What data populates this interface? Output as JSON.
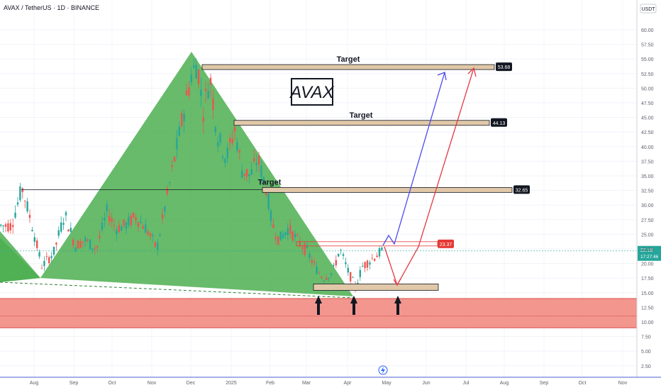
{
  "header": {
    "symbol_title": "AVAX / TetherUS · 1D · BINANCE",
    "currency": "USDT"
  },
  "chart_data": {
    "type": "candlestick",
    "title": "AVAX",
    "y_axis": {
      "ticks": [
        2.5,
        5,
        7.5,
        10,
        12.5,
        15,
        17.5,
        20,
        22.5,
        25,
        27.5,
        30,
        32.5,
        35,
        37.5,
        40,
        42.5,
        45,
        47.5,
        50,
        52.5,
        55,
        57.5,
        60
      ],
      "ylim": [
        0,
        63
      ],
      "position": "right"
    },
    "x_axis": {
      "ticks": [
        "Aug",
        "Sep",
        "Oct",
        "Nov",
        "Dec",
        "2025",
        "Feb",
        "Mar",
        "Apr",
        "May",
        "Jun",
        "Jul",
        "Aug",
        "Sep",
        "Oct",
        "Nov"
      ]
    },
    "current_price": {
      "value": "22.16",
      "countdown": "17:27:46"
    },
    "levels": [
      {
        "label": "Target",
        "value": 53.68,
        "badge": "53.68"
      },
      {
        "label": "Target",
        "value": 44.13,
        "badge": "44.13"
      },
      {
        "label": "Target",
        "value": 32.65,
        "badge": "32.65"
      },
      {
        "label": "",
        "value": 23.37,
        "badge": "23.37"
      }
    ],
    "support_zone": [
      9,
      14
    ],
    "base_zone": [
      15.4,
      16.5
    ],
    "colors": {
      "up": "#26a69a",
      "down": "#ef5350",
      "pattern_fill": "#4caf50",
      "support": "#f28b82",
      "zone": "#e0c8a8",
      "badge": "#131722",
      "badge_red": "#e53935",
      "blue_arrow": "#4b4bf0",
      "red_arrow": "#e53945"
    },
    "series": {
      "name": "",
      "points": [
        [
          15.0,
          26.5
        ],
        [
          30,
          33.0
        ],
        [
          42,
          27.5
        ],
        [
          58,
          19.5
        ],
        [
          75,
          22.0
        ],
        [
          90,
          28.5
        ],
        [
          105,
          23.0
        ],
        [
          118,
          24.0
        ],
        [
          135,
          22.5
        ],
        [
          150,
          29.0
        ],
        [
          162,
          26.0
        ],
        [
          175,
          26.5
        ],
        [
          190,
          28.0
        ],
        [
          205,
          26.0
        ],
        [
          220,
          22.5
        ],
        [
          232,
          30.0
        ],
        [
          245,
          38.0
        ],
        [
          258,
          46.0
        ],
        [
          268,
          52.0
        ],
        [
          277,
          54.5
        ],
        [
          285,
          46.0
        ],
        [
          295,
          52.0
        ],
        [
          305,
          42.0
        ],
        [
          318,
          38.0
        ],
        [
          330,
          43.0
        ],
        [
          340,
          36.0
        ],
        [
          352,
          35.0
        ],
        [
          362,
          38.0
        ],
        [
          375,
          32.5
        ],
        [
          382,
          27.0
        ],
        [
          392,
          24.0
        ],
        [
          405,
          26.0
        ],
        [
          418,
          24.0
        ],
        [
          432,
          22.0
        ],
        [
          445,
          19.0
        ],
        [
          455,
          17.5
        ],
        [
          468,
          18.5
        ],
        [
          478,
          22.5
        ],
        [
          490,
          18.5
        ],
        [
          500,
          16.0
        ],
        [
          510,
          19.5
        ],
        [
          520,
          20.5
        ],
        [
          530,
          21.5
        ],
        [
          540,
          22.16
        ]
      ]
    }
  }
}
